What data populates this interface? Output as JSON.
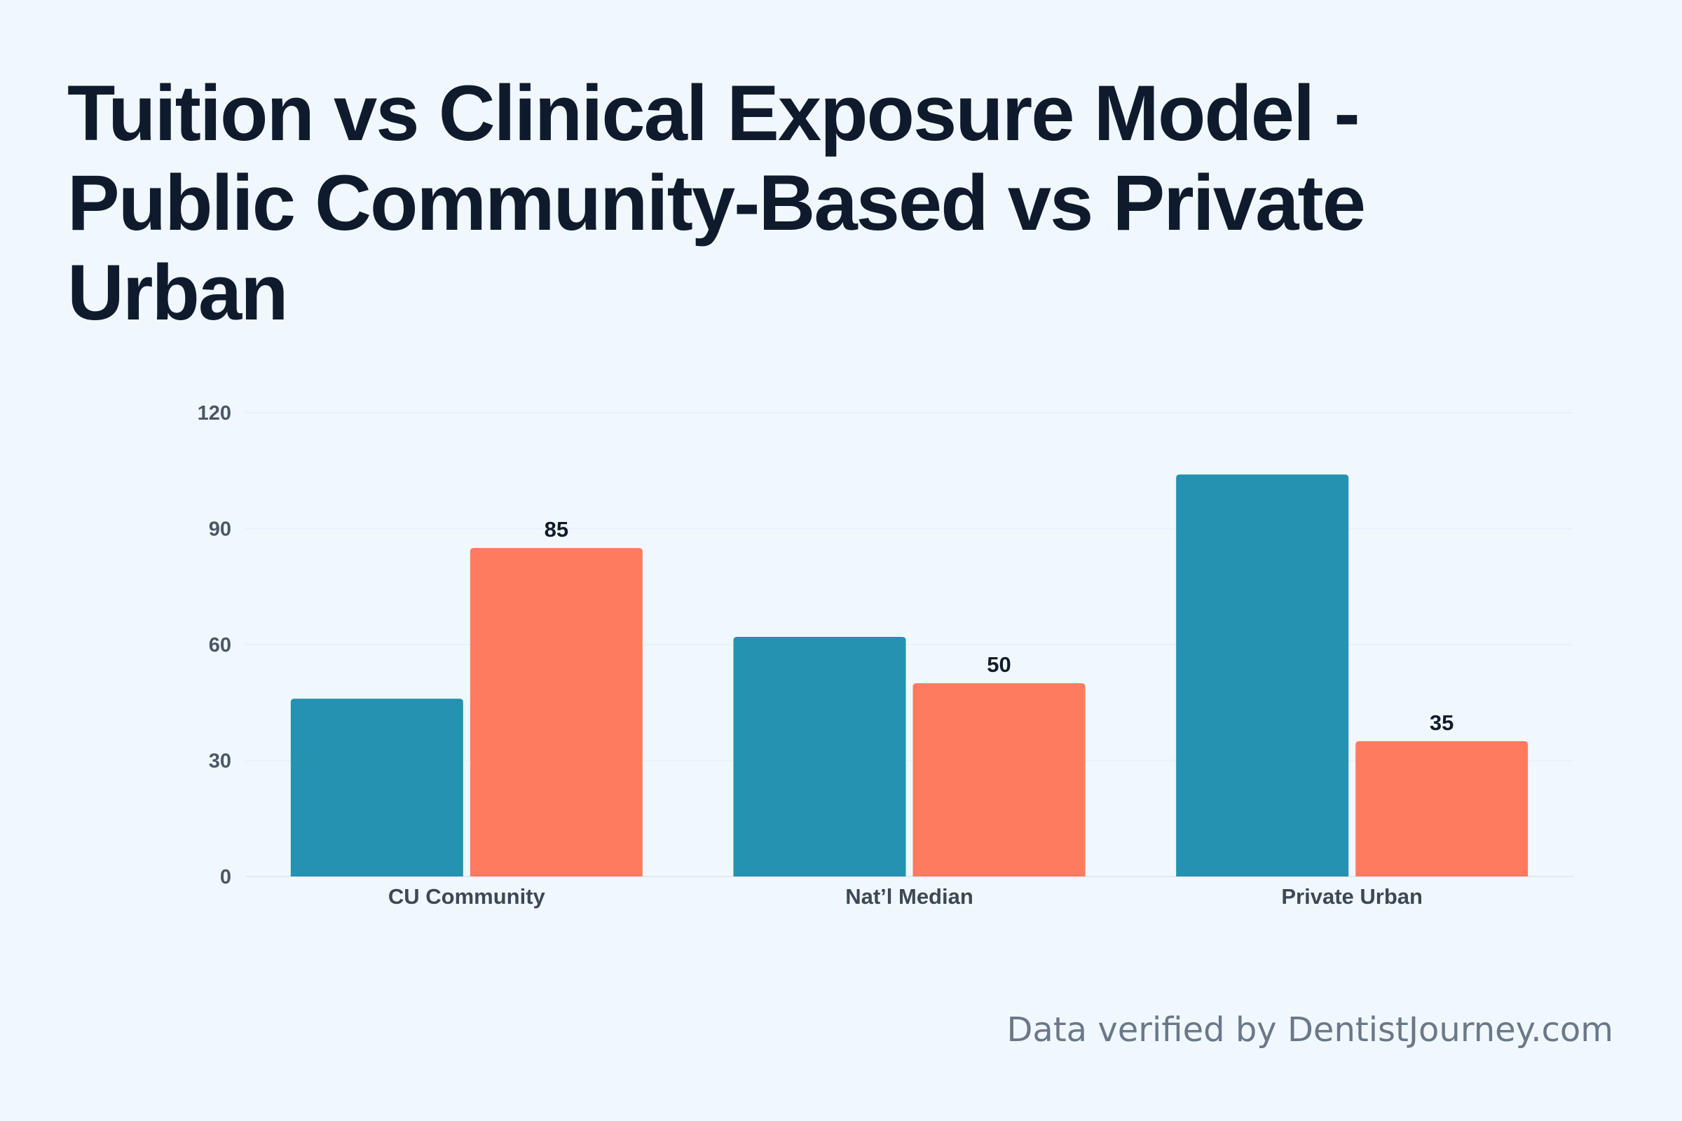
{
  "chart_data": {
    "type": "bar",
    "title": "Tuition vs Clinical Exposure Model - Public Community-Based vs Private Urban",
    "categories": [
      "CU Community",
      "Nat’l Median",
      "Private Urban"
    ],
    "series": [
      {
        "color": "#2492b0",
        "values": [
          46,
          62,
          104
        ],
        "show_labels": false
      },
      {
        "color": "#ff7b5f",
        "values": [
          85,
          50,
          35
        ],
        "show_labels": true
      }
    ],
    "ylim": [
      0,
      120
    ],
    "yticks": [
      0,
      30,
      60,
      90,
      120
    ],
    "grid": true,
    "legend": "none",
    "xlabel": "",
    "ylabel": ""
  },
  "footer": {
    "text": "Data verified by DentistJourney.com"
  }
}
